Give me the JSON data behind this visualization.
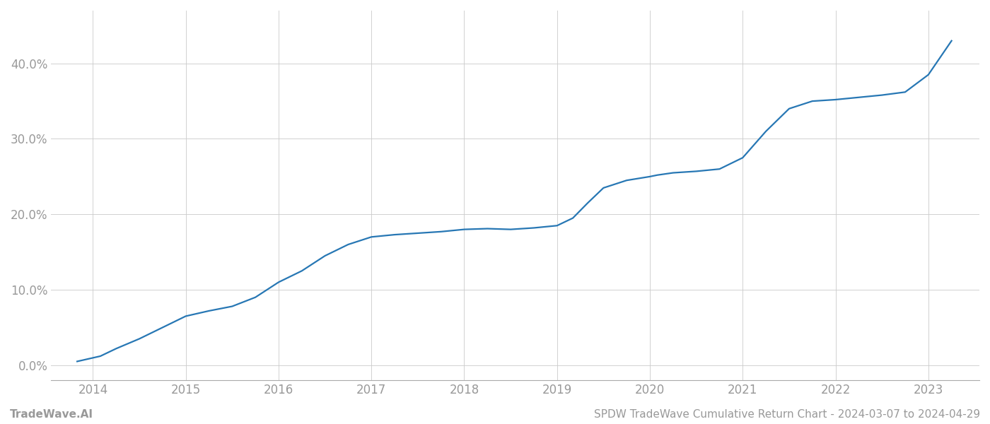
{
  "title_footer": "SPDW TradeWave Cumulative Return Chart - 2024-03-07 to 2024-04-29",
  "footer_left": "TradeWave.AI",
  "line_color": "#2777b4",
  "background_color": "#ffffff",
  "grid_color": "#cccccc",
  "x_years": [
    2014,
    2015,
    2016,
    2017,
    2018,
    2019,
    2020,
    2021,
    2022,
    2023
  ],
  "x_values": [
    2013.83,
    2014.08,
    2014.25,
    2014.5,
    2014.75,
    2015.0,
    2015.25,
    2015.5,
    2015.75,
    2016.0,
    2016.25,
    2016.5,
    2016.75,
    2017.0,
    2017.25,
    2017.5,
    2017.75,
    2018.0,
    2018.25,
    2018.5,
    2018.75,
    2019.0,
    2019.17,
    2019.33,
    2019.5,
    2019.75,
    2020.0,
    2020.08,
    2020.25,
    2020.5,
    2020.75,
    2021.0,
    2021.25,
    2021.5,
    2021.75,
    2022.0,
    2022.25,
    2022.5,
    2022.75,
    2023.0,
    2023.25
  ],
  "y_values": [
    0.5,
    1.2,
    2.2,
    3.5,
    5.0,
    6.5,
    7.2,
    7.8,
    9.0,
    11.0,
    12.5,
    14.5,
    16.0,
    17.0,
    17.3,
    17.5,
    17.7,
    18.0,
    18.1,
    18.0,
    18.2,
    18.5,
    19.5,
    21.5,
    23.5,
    24.5,
    25.0,
    25.2,
    25.5,
    25.7,
    26.0,
    27.5,
    31.0,
    34.0,
    35.0,
    35.2,
    35.5,
    35.8,
    36.2,
    38.5,
    43.0
  ],
  "ylim": [
    -2,
    47
  ],
  "yticks": [
    0.0,
    10.0,
    20.0,
    30.0,
    40.0
  ],
  "xlim": [
    2013.55,
    2023.55
  ],
  "line_width": 1.6,
  "tick_label_color": "#999999",
  "tick_label_fontsize": 12,
  "footer_fontsize": 11
}
